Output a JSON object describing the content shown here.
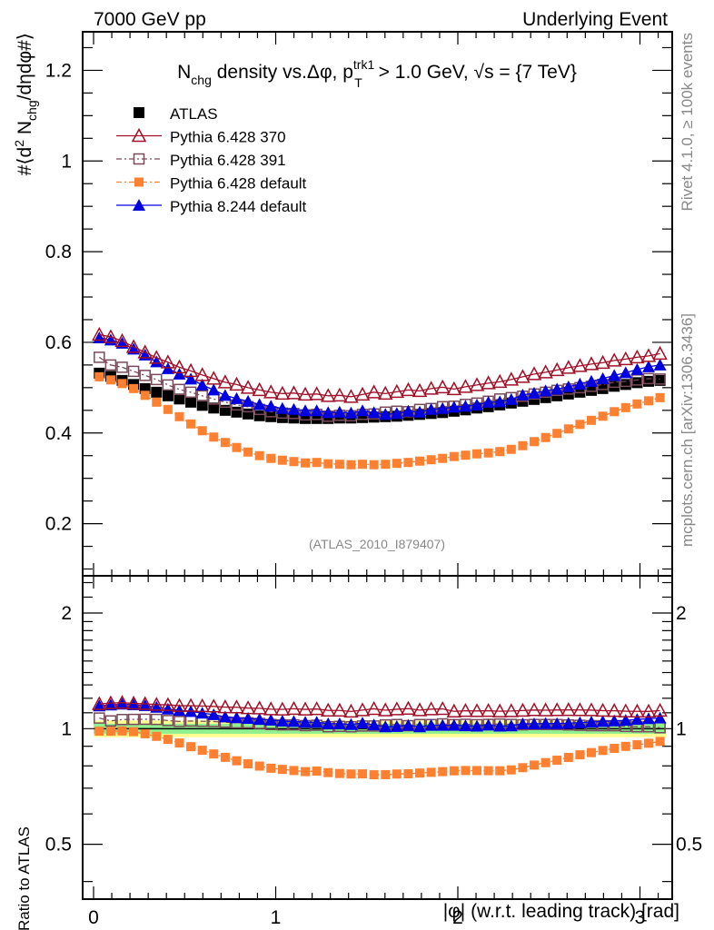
{
  "header": {
    "left_label": "7000 GeV pp",
    "right_label": "Underlying Event"
  },
  "side_labels": {
    "rivet": "Rivet 4.1.0, ≥ 100k events",
    "mcplots": "mcplots.cern.ch [arXiv:1306.3436]"
  },
  "analysis_id": "(ATLAS_2010_I879407)",
  "chart_data": [
    {
      "type": "scatter",
      "panel": "main",
      "title": "N_chg density vs.Δφ, p_T^trk1 > 1.0 GeV, √s = {7 TeV}",
      "title_parts": {
        "main": "N",
        "sub1": "chg",
        "mid": " density vs.Δφ, p",
        "sup": "trk1",
        "sub2": "T",
        "tail": " > 1.0 GeV, √s = {7 TeV}"
      },
      "xlabel": "|φ| (w.r.t. leading track) [rad]",
      "ylabel": "#⟨d² N_chg/dηdφ#⟩",
      "ylabel_parts": {
        "a": "#⟨d",
        "sup": "2",
        "b": " N",
        "sub": "chg",
        "c": "/dηdφ#⟩"
      },
      "xlim": [
        -0.06,
        3.18
      ],
      "ylim": [
        0.085,
        1.285
      ],
      "yticks": [
        0.2,
        0.4,
        0.6,
        0.8,
        1.0,
        1.2
      ],
      "ytick_labels": [
        "0.2",
        "0.4",
        "0.6",
        "0.8",
        "1",
        "1.2"
      ],
      "xticks": [
        0,
        1,
        2,
        3
      ],
      "legend_position": "top-left",
      "series": [
        {
          "name": "ATLAS",
          "color": "#000000",
          "marker": "filled-square",
          "line": "none",
          "values": [
            0.532,
            0.525,
            0.516,
            0.507,
            0.498,
            0.49,
            0.482,
            0.475,
            0.468,
            0.461,
            0.455,
            0.45,
            0.446,
            0.442,
            0.438,
            0.436,
            0.434,
            0.433,
            0.432,
            0.432,
            0.432,
            0.433,
            0.433,
            0.434,
            0.435,
            0.436,
            0.437,
            0.439,
            0.441,
            0.443,
            0.445,
            0.448,
            0.451,
            0.455,
            0.458,
            0.462,
            0.466,
            0.47,
            0.474,
            0.478,
            0.482,
            0.486,
            0.49,
            0.494,
            0.498,
            0.503,
            0.507,
            0.511,
            0.514,
            0.516
          ]
        },
        {
          "name": "Pythia 6.428 370",
          "color": "#a01028",
          "marker": "open-triangle",
          "line": "solid",
          "values": [
            0.617,
            0.612,
            0.603,
            0.59,
            0.578,
            0.566,
            0.556,
            0.545,
            0.537,
            0.528,
            0.52,
            0.512,
            0.507,
            0.5,
            0.495,
            0.49,
            0.487,
            0.488,
            0.485,
            0.486,
            0.482,
            0.483,
            0.48,
            0.485,
            0.49,
            0.487,
            0.491,
            0.495,
            0.493,
            0.498,
            0.501,
            0.497,
            0.502,
            0.506,
            0.51,
            0.513,
            0.518,
            0.524,
            0.53,
            0.534,
            0.539,
            0.544,
            0.548,
            0.552,
            0.555,
            0.56,
            0.563,
            0.567,
            0.57,
            0.575
          ]
        },
        {
          "name": "Pythia 6.428 391",
          "color": "#7a4a5a",
          "marker": "open-square",
          "line": "dash-dot",
          "values": [
            0.567,
            0.55,
            0.545,
            0.536,
            0.527,
            0.518,
            0.506,
            0.496,
            0.49,
            0.482,
            0.475,
            0.468,
            0.462,
            0.458,
            0.452,
            0.447,
            0.444,
            0.443,
            0.44,
            0.441,
            0.437,
            0.439,
            0.438,
            0.441,
            0.442,
            0.446,
            0.448,
            0.447,
            0.452,
            0.454,
            0.458,
            0.459,
            0.463,
            0.466,
            0.47,
            0.475,
            0.478,
            0.481,
            0.486,
            0.49,
            0.494,
            0.497,
            0.5,
            0.503,
            0.507,
            0.512,
            0.514,
            0.517,
            0.52,
            0.519
          ]
        },
        {
          "name": "Pythia 6.428 default",
          "color": "#ff8030",
          "marker": "filled-square-small",
          "line": "dash-dot",
          "values": [
            0.524,
            0.517,
            0.509,
            0.498,
            0.483,
            0.468,
            0.452,
            0.436,
            0.42,
            0.405,
            0.391,
            0.379,
            0.368,
            0.358,
            0.35,
            0.344,
            0.34,
            0.337,
            0.334,
            0.335,
            0.332,
            0.331,
            0.33,
            0.331,
            0.33,
            0.331,
            0.333,
            0.335,
            0.338,
            0.341,
            0.344,
            0.348,
            0.351,
            0.354,
            0.356,
            0.359,
            0.364,
            0.372,
            0.381,
            0.39,
            0.399,
            0.409,
            0.419,
            0.428,
            0.437,
            0.447,
            0.456,
            0.464,
            0.471,
            0.478
          ]
        },
        {
          "name": "Pythia 8.244 default",
          "color": "#0000e0",
          "marker": "filled-triangle",
          "line": "solid",
          "values": [
            0.61,
            0.605,
            0.598,
            0.585,
            0.572,
            0.557,
            0.542,
            0.53,
            0.519,
            0.506,
            0.495,
            0.483,
            0.476,
            0.47,
            0.463,
            0.459,
            0.454,
            0.452,
            0.449,
            0.449,
            0.445,
            0.446,
            0.444,
            0.449,
            0.445,
            0.441,
            0.443,
            0.448,
            0.446,
            0.452,
            0.454,
            0.457,
            0.459,
            0.462,
            0.468,
            0.469,
            0.474,
            0.484,
            0.488,
            0.493,
            0.497,
            0.502,
            0.508,
            0.514,
            0.52,
            0.527,
            0.533,
            0.54,
            0.546,
            0.55
          ]
        }
      ]
    },
    {
      "type": "scatter",
      "panel": "ratio",
      "ylabel": "Ratio to ATLAS",
      "yscale": "log",
      "ylim": [
        0.36,
        2.5
      ],
      "yticks": [
        0.5,
        1,
        2
      ],
      "ytick_labels": [
        "0.5",
        "1",
        "2"
      ],
      "xticks": [
        0,
        1,
        2,
        3
      ],
      "xtick_labels": [
        "0",
        "1",
        "2",
        "3"
      ],
      "bands": [
        {
          "name": "ATLAS total uncertainty",
          "color": "#ffff90",
          "half_width": 0.05
        },
        {
          "name": "ATLAS stat uncertainty",
          "color": "#90f090",
          "half_width": 0.03
        }
      ],
      "reference_line": 1.0,
      "series_ref": [
        "Pythia 6.428 370",
        "Pythia 6.428 391",
        "Pythia 6.428 default",
        "Pythia 8.244 default"
      ],
      "note": "ratio values are series values divided by ATLAS values"
    }
  ]
}
